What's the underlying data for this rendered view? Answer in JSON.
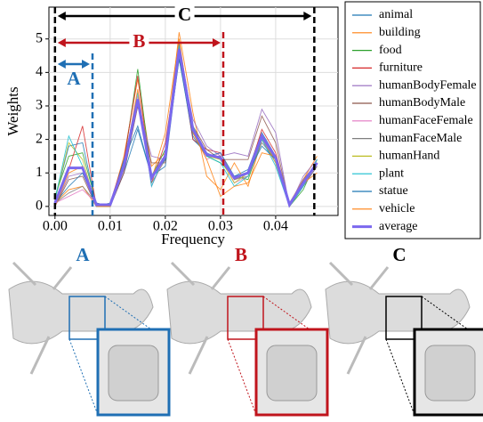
{
  "chart_data": {
    "type": "line",
    "x_label": "Frequency",
    "y_label": "Weights",
    "x": [
      0,
      0.0025,
      0.005,
      0.0075,
      0.01,
      0.0125,
      0.015,
      0.0175,
      0.02,
      0.0225,
      0.025,
      0.0275,
      0.03,
      0.0325,
      0.035,
      0.0375,
      0.04,
      0.0425,
      0.045,
      0.0475
    ],
    "xlim": [
      -0.0011,
      0.0513
    ],
    "ylim": [
      -0.27,
      5.95
    ],
    "xticks": [
      {
        "value": 0,
        "label": "0.00"
      },
      {
        "value": 0.01,
        "label": "0.01"
      },
      {
        "value": 0.02,
        "label": "0.02"
      },
      {
        "value": 0.03,
        "label": "0.03"
      },
      {
        "value": 0.04,
        "label": "0.04"
      }
    ],
    "yticks": [
      0,
      1,
      2,
      3,
      4,
      5
    ],
    "grid": true,
    "legend": "outside right",
    "series": [
      {
        "name": "animal",
        "color": "#1f77b4",
        "values": [
          0.2,
          1.8,
          1.9,
          0.0,
          0.0,
          1.0,
          2.3,
          0.9,
          1.2,
          4.5,
          2.0,
          1.6,
          1.4,
          0.9,
          1.1,
          2.2,
          1.5,
          0.0,
          0.6,
          1.2
        ]
      },
      {
        "name": "building",
        "color": "#ff7f0e",
        "values": [
          0.1,
          0.5,
          0.6,
          0.0,
          0.0,
          1.5,
          3.8,
          1.2,
          1.6,
          5.2,
          2.8,
          0.9,
          0.5,
          1.3,
          0.6,
          2.0,
          1.4,
          0.1,
          0.8,
          1.5
        ]
      },
      {
        "name": "food",
        "color": "#2ca02c",
        "values": [
          0.3,
          1.5,
          1.6,
          0.1,
          0.0,
          1.3,
          4.1,
          0.9,
          1.7,
          4.4,
          2.3,
          1.5,
          1.3,
          0.9,
          0.8,
          2.0,
          1.3,
          0.0,
          0.5,
          1.4
        ]
      },
      {
        "name": "furniture",
        "color": "#d62728",
        "values": [
          0.1,
          1.1,
          2.4,
          0.0,
          0.1,
          1.4,
          3.9,
          0.7,
          1.9,
          4.6,
          2.0,
          1.7,
          1.6,
          0.8,
          1.0,
          2.3,
          1.6,
          0.1,
          0.7,
          1.3
        ]
      },
      {
        "name": "humanBodyFemale",
        "color": "#9467bd",
        "values": [
          0.0,
          0.9,
          1.0,
          0.0,
          0.0,
          1.0,
          3.0,
          1.5,
          1.4,
          4.6,
          2.6,
          1.8,
          1.5,
          1.6,
          1.5,
          2.9,
          2.2,
          0.0,
          0.9,
          1.4
        ]
      },
      {
        "name": "humanBodyMale",
        "color": "#8c564b",
        "values": [
          0.0,
          0.8,
          0.9,
          0.0,
          0.0,
          1.0,
          3.0,
          1.3,
          1.3,
          4.9,
          2.4,
          1.7,
          1.4,
          1.4,
          1.4,
          2.7,
          1.9,
          0.0,
          0.8,
          1.3
        ]
      },
      {
        "name": "humanFaceFemale",
        "color": "#e377c2",
        "values": [
          0.1,
          0.3,
          0.5,
          0.1,
          0.0,
          1.3,
          3.3,
          0.6,
          1.5,
          4.8,
          2.3,
          1.4,
          1.6,
          0.7,
          0.9,
          2.0,
          1.3,
          0.0,
          0.6,
          1.2
        ]
      },
      {
        "name": "humanFaceMale",
        "color": "#7f7f7f",
        "values": [
          0.1,
          0.4,
          0.6,
          0.1,
          0.0,
          1.2,
          3.2,
          0.7,
          1.4,
          4.9,
          2.2,
          1.5,
          1.5,
          0.8,
          0.9,
          1.9,
          1.4,
          0.0,
          0.6,
          1.2
        ]
      },
      {
        "name": "humanHand",
        "color": "#bcbd22",
        "values": [
          0.2,
          1.9,
          1.4,
          0.0,
          0.0,
          1.1,
          3.1,
          0.8,
          1.5,
          4.7,
          2.2,
          1.5,
          1.4,
          0.7,
          1.0,
          2.1,
          1.3,
          0.1,
          0.7,
          1.3
        ]
      },
      {
        "name": "plant",
        "color": "#17becf",
        "values": [
          0.2,
          2.1,
          1.2,
          0.0,
          0.1,
          1.2,
          3.4,
          0.6,
          1.6,
          4.8,
          2.4,
          1.5,
          1.3,
          0.6,
          0.9,
          2.0,
          1.2,
          0.0,
          0.6,
          1.4
        ]
      },
      {
        "name": "statue",
        "color": "#1f77b4",
        "values": [
          0.1,
          0.6,
          1.0,
          0.1,
          0.0,
          1.4,
          2.4,
          0.9,
          1.4,
          4.4,
          2.1,
          1.5,
          1.6,
          0.9,
          1.0,
          1.8,
          1.4,
          0.0,
          0.7,
          1.3
        ]
      },
      {
        "name": "vehicle",
        "color": "#ff7f0e",
        "values": [
          0.0,
          1.0,
          1.2,
          0.0,
          0.0,
          1.2,
          3.5,
          0.8,
          2.2,
          5.0,
          2.2,
          1.4,
          0.3,
          0.6,
          0.7,
          1.6,
          1.5,
          0.0,
          0.7,
          1.0
        ]
      },
      {
        "name": "average",
        "color": "#7b68ee",
        "bold": true,
        "values": [
          0.1,
          1.15,
          1.15,
          0.05,
          0.05,
          1.2,
          3.2,
          0.85,
          1.5,
          4.7,
          2.3,
          1.55,
          1.45,
          0.85,
          1.0,
          2.1,
          1.45,
          0.05,
          0.7,
          1.3
        ]
      }
    ],
    "regions": [
      {
        "label": "C",
        "color": "#000000",
        "x": 0.047
      },
      {
        "label": "B",
        "color": "#c0141c",
        "x": 0.0305
      },
      {
        "label": "A",
        "color": "#1f6fb4",
        "x": 0.0068
      }
    ]
  },
  "images": [
    {
      "label": "A",
      "color": "#1f6fb4"
    },
    {
      "label": "B",
      "color": "#c0141c"
    },
    {
      "label": "C",
      "color": "#000000"
    }
  ]
}
